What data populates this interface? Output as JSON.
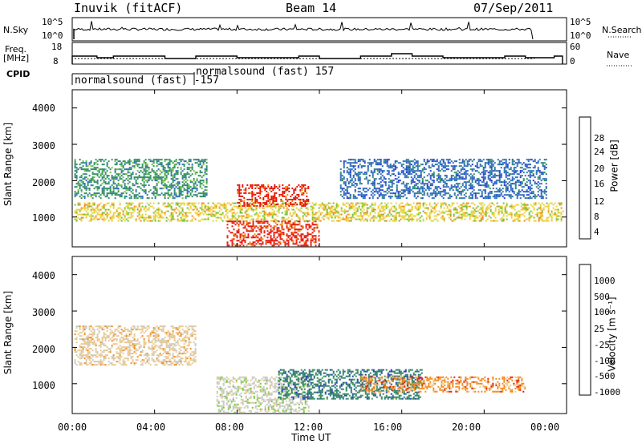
{
  "header": {
    "station": "Inuvik (fitACF)",
    "beam": "Beam 14",
    "date": "07/Sep/2011"
  },
  "nsky_panel": {
    "label": "N.Sky",
    "right_label": "N.Search",
    "ticks_left": [
      "10^5",
      "10^0"
    ],
    "ticks_right": [
      "10^5",
      "10^0"
    ]
  },
  "freq_panel": {
    "label_line1": "Freq.",
    "label_line2": "[MHz]",
    "right_label": "Nave",
    "ticks_left": [
      "18",
      "8"
    ],
    "ticks_right": [
      "60",
      "0"
    ]
  },
  "cpid": {
    "label": "CPID",
    "segment1": "normalsound (fast) -157",
    "segment2": "normalsound (fast) 157"
  },
  "axes": {
    "ylabel": "Slant Range [km]",
    "xlabel": "Time UT",
    "yticks": [
      "4000",
      "3000",
      "2000",
      "1000"
    ],
    "xticks": [
      "00:00",
      "04:00",
      "08:00",
      "12:00",
      "16:00",
      "20:00",
      "00:00"
    ]
  },
  "power_colorbar": {
    "label": "Power [dB]",
    "ticks": [
      "28",
      "24",
      "20",
      "16",
      "12",
      "8",
      "4"
    ]
  },
  "velocity_colorbar": {
    "label": "Velocity [m s⁻¹]",
    "ticks": [
      "1000",
      "500",
      "100",
      "25",
      "-25",
      "-100",
      "-500",
      "-1000"
    ]
  },
  "chart_data": [
    {
      "type": "heatmap",
      "title": "",
      "xlabel": "Time UT",
      "ylabel": "Slant Range [km]",
      "x_range_hours": [
        0,
        24
      ],
      "y_range_km": [
        180,
        4500
      ],
      "colorbar_label": "Power [dB]",
      "color_levels": [
        {
          "value": 4,
          "color": "#1e3cd2"
        },
        {
          "value": 8,
          "color": "#2a6cb5"
        },
        {
          "value": 12,
          "color": "#2f8f5e"
        },
        {
          "value": 16,
          "color": "#6fbf3a"
        },
        {
          "value": 20,
          "color": "#e8d23a"
        },
        {
          "value": 24,
          "color": "#f08a1a"
        },
        {
          "value": 28,
          "color": "#e81a0c"
        }
      ],
      "echo_regions": [
        {
          "t_start": 0.1,
          "t_end": 23.8,
          "r_min": 900,
          "r_max": 1400,
          "level": 20
        },
        {
          "t_start": 0.1,
          "t_end": 6.5,
          "r_min": 1500,
          "r_max": 2600,
          "level": 12
        },
        {
          "t_start": 7.5,
          "t_end": 12.0,
          "r_min": 200,
          "r_max": 900,
          "level": 28
        },
        {
          "t_start": 8.0,
          "t_end": 11.5,
          "r_min": 1300,
          "r_max": 1900,
          "level": 28
        },
        {
          "t_start": 13.0,
          "t_end": 23.0,
          "r_min": 1500,
          "r_max": 2600,
          "level": 8
        }
      ]
    },
    {
      "type": "heatmap",
      "title": "",
      "xlabel": "Time UT",
      "ylabel": "Slant Range [km]",
      "x_range_hours": [
        0,
        24
      ],
      "y_range_km": [
        180,
        4500
      ],
      "colorbar_label": "Velocity [m s⁻¹]",
      "color_levels": [
        {
          "value": 1000,
          "color": "#1f3fae"
        },
        {
          "value": 500,
          "color": "#2a7a6a"
        },
        {
          "value": 100,
          "color": "#3e9a4c"
        },
        {
          "value": 25,
          "color": "#73c83a"
        },
        {
          "value": -25,
          "color": "#c8c8c0"
        },
        {
          "value": -100,
          "color": "#e8c890"
        },
        {
          "value": -500,
          "color": "#f08a1a"
        },
        {
          "value": -1000,
          "color": "#e81a0c"
        }
      ],
      "echo_regions": [
        {
          "t_start": 0.1,
          "t_end": 6.0,
          "r_min": 1500,
          "r_max": 2600,
          "level": -100
        },
        {
          "t_start": 7.0,
          "t_end": 11.5,
          "r_min": 200,
          "r_max": 1200,
          "level": -25
        },
        {
          "t_start": 10.0,
          "t_end": 17.0,
          "r_min": 600,
          "r_max": 1400,
          "level": 500
        },
        {
          "t_start": 14.0,
          "t_end": 22.0,
          "r_min": 800,
          "r_max": 1200,
          "level": -500
        }
      ]
    }
  ]
}
